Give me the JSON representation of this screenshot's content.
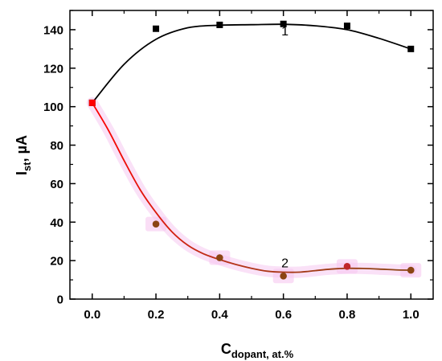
{
  "chart_data": {
    "type": "scatter",
    "xlabel": {
      "main": "C",
      "sub": "dopant, at.%"
    },
    "ylabel": {
      "main": "I",
      "sub": "st",
      "rest": ", µA"
    },
    "xlim": [
      -0.07,
      1.07
    ],
    "ylim": [
      0,
      150
    ],
    "x_ticks": [
      "0.0",
      "0.2",
      "0.4",
      "0.6",
      "0.8",
      "1.0"
    ],
    "x_tick_values": [
      0,
      0.2,
      0.4,
      0.6,
      0.8,
      1.0
    ],
    "y_ticks": [
      "0",
      "20",
      "40",
      "60",
      "80",
      "100",
      "120",
      "140"
    ],
    "y_tick_values": [
      0,
      20,
      40,
      60,
      80,
      100,
      120,
      140
    ],
    "grid": false,
    "series": [
      {
        "label": "1",
        "marker": "square",
        "color": "#000000",
        "x": [
          0,
          0.2,
          0.4,
          0.6,
          0.8,
          1.0
        ],
        "y": [
          102,
          140.5,
          142.5,
          143,
          142,
          130
        ],
        "fit": [
          [
            0,
            102
          ],
          [
            0.1,
            122
          ],
          [
            0.2,
            135
          ],
          [
            0.3,
            141
          ],
          [
            0.4,
            142.3
          ],
          [
            0.5,
            142.6
          ],
          [
            0.6,
            142.8
          ],
          [
            0.7,
            142
          ],
          [
            0.8,
            140
          ],
          [
            0.9,
            135.5
          ],
          [
            1.0,
            130
          ]
        ]
      },
      {
        "label": "2",
        "marker": "circle",
        "color": "#8b4513",
        "x": [
          0,
          0.2,
          0.4,
          0.6,
          0.8,
          1.0
        ],
        "y": [
          102,
          39,
          21.5,
          12,
          17,
          15
        ],
        "fit": [
          [
            0,
            102
          ],
          [
            0.05,
            88
          ],
          [
            0.1,
            72
          ],
          [
            0.15,
            57
          ],
          [
            0.2,
            45
          ],
          [
            0.25,
            35
          ],
          [
            0.3,
            28
          ],
          [
            0.35,
            23.5
          ],
          [
            0.4,
            20.5
          ],
          [
            0.45,
            18
          ],
          [
            0.5,
            16
          ],
          [
            0.55,
            14.5
          ],
          [
            0.6,
            14
          ],
          [
            0.65,
            14
          ],
          [
            0.7,
            14.8
          ],
          [
            0.75,
            15.6
          ],
          [
            0.8,
            16
          ],
          [
            0.85,
            15.9
          ],
          [
            0.9,
            15.6
          ],
          [
            0.95,
            15.2
          ],
          [
            1.0,
            15
          ]
        ]
      }
    ],
    "curve_labels": [
      {
        "text": "1",
        "x": 0.605,
        "y": 137
      },
      {
        "text": "2",
        "x": 0.605,
        "y": 16.5
      }
    ]
  }
}
